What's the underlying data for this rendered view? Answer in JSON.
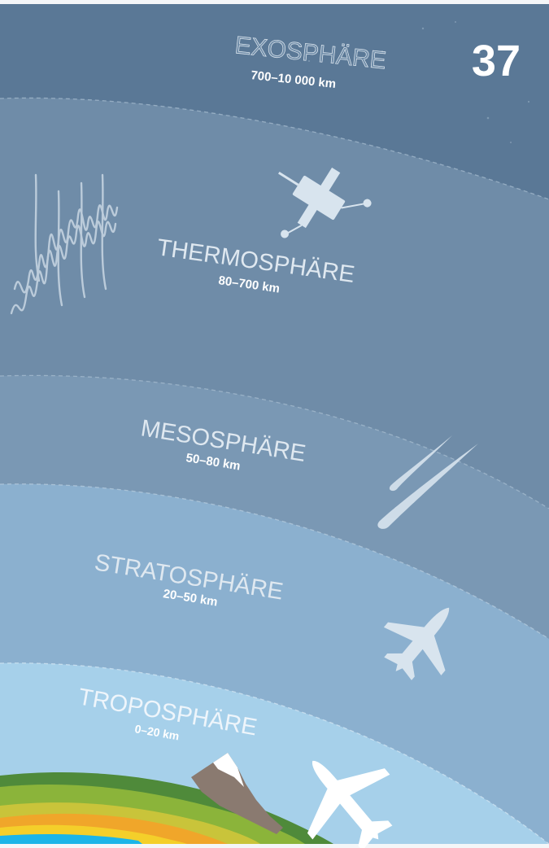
{
  "page_number": "37",
  "colors": {
    "exosphere": "#5a7896",
    "thermosphere": "#6f8ca8",
    "mesosphere": "#7a98b4",
    "stratosphere": "#8bb0cf",
    "troposphere": "#a6d0ea",
    "icon": "#d8e4ee",
    "text_light": "#dfe8f0"
  },
  "layers": [
    {
      "id": "exosphere",
      "name": "EXOSPHÄRE",
      "range": "700–10 000 km",
      "icon": "stars"
    },
    {
      "id": "thermosphere",
      "name": "THERMOSPHÄRE",
      "range": "80–700 km",
      "icon": "satellite-icon"
    },
    {
      "id": "aurora",
      "name": "",
      "range": "",
      "icon": "aurora-icon"
    },
    {
      "id": "mesosphere",
      "name": "MESOSPHÄRE",
      "range": "50–80 km",
      "icon": "meteor-icon"
    },
    {
      "id": "stratosphere",
      "name": "STRATOSPHÄRE",
      "range": "20–50 km",
      "icon": "fighter-jet-icon"
    },
    {
      "id": "troposphere",
      "name": "TROPOSPHÄRE",
      "range": "0–20 km",
      "icon": "airliner-icon"
    }
  ]
}
